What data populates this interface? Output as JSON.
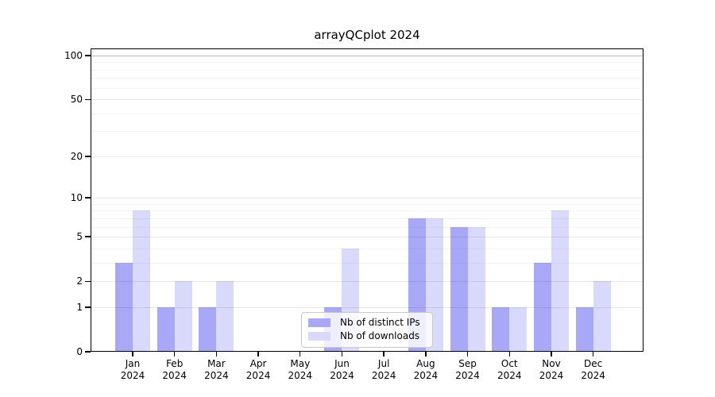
{
  "chart_data": {
    "type": "bar",
    "title": "arrayQCplot 2024",
    "categories": [
      "Jan 2024",
      "Feb 2024",
      "Mar 2024",
      "Apr 2024",
      "May 2024",
      "Jun 2024",
      "Jul 2024",
      "Aug 2024",
      "Sep 2024",
      "Oct 2024",
      "Nov 2024",
      "Dec 2024"
    ],
    "series": [
      {
        "name": "Nb of distinct IPs",
        "color": "#a8a8f6",
        "values": [
          3,
          1,
          1,
          0,
          0,
          1,
          0,
          7,
          6,
          1,
          3,
          1
        ]
      },
      {
        "name": "Nb of downloads",
        "color": "#d9d9fb",
        "values": [
          8,
          2,
          2,
          0,
          0,
          4,
          0,
          7,
          6,
          1,
          8,
          2
        ]
      }
    ],
    "xlabel": "",
    "ylabel": "",
    "y_axis": {
      "scale": "log1p",
      "ylim": [
        0,
        100
      ],
      "tick_values": [
        100,
        50,
        20,
        10,
        5,
        2,
        1,
        0
      ],
      "major_gridlines": [
        1,
        2,
        5,
        10,
        20,
        50
      ],
      "minor_gridlines": [
        3,
        4,
        6,
        7,
        8,
        9,
        30,
        40,
        60,
        70,
        80,
        90
      ],
      "top_gridline": 100
    },
    "grid": true,
    "legend_position": "lower center inside plot"
  }
}
